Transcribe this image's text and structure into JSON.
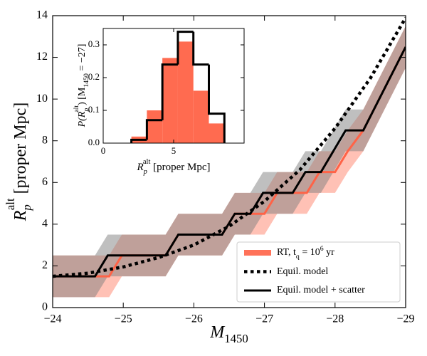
{
  "chart_data": {
    "type": "line",
    "xlabel": [
      "M",
      "1450"
    ],
    "ylabel": [
      "R",
      "p",
      "alt",
      " [proper Mpc]"
    ],
    "xlim": [
      -24,
      -29
    ],
    "ylim": [
      0,
      14
    ],
    "xticks": [
      {
        "value": -24,
        "label": "−24"
      },
      {
        "value": -25,
        "label": "−25"
      },
      {
        "value": -26,
        "label": "−26"
      },
      {
        "value": -27,
        "label": "−27"
      },
      {
        "value": -28,
        "label": "−28"
      },
      {
        "value": -29,
        "label": "−29"
      }
    ],
    "yticks": [
      0,
      2,
      4,
      6,
      8,
      10,
      12,
      14
    ],
    "legend": "lower right",
    "series": [
      {
        "name": [
          "RT, t",
          "q",
          " = 10",
          "6",
          " yr"
        ],
        "color": "#ff6347",
        "band_color": "#ff6347",
        "band": 1,
        "style": "solid",
        "x": [
          -24,
          -24.8,
          -24.98,
          -25.6,
          -25.78,
          -26.4,
          -26.58,
          -27.0,
          -27.18,
          -27.6,
          -27.78,
          -28.0,
          -28.18,
          -28.4,
          -29
        ],
        "values": [
          1.5,
          1.5,
          2.5,
          2.5,
          3.5,
          3.5,
          4.5,
          4.5,
          5.5,
          5.5,
          6.5,
          6.5,
          7.5,
          8.5,
          12.5
        ]
      },
      {
        "name": "Equil. model",
        "color": "#000000",
        "style": "dotted",
        "x": [
          -24,
          -24.5,
          -25,
          -25.5,
          -26,
          -26.5,
          -27,
          -27.5,
          -28,
          -28.5,
          -29
        ],
        "values": [
          1.5,
          1.65,
          1.95,
          2.4,
          3.0,
          3.9,
          5.1,
          6.6,
          8.6,
          11.0,
          13.9
        ]
      },
      {
        "name": "Equil. model + scatter",
        "color": "#000000",
        "band_color": "#808080",
        "band": 1,
        "style": "solid",
        "x": [
          -24,
          -24.6,
          -24.78,
          -25.6,
          -25.78,
          -26.4,
          -26.58,
          -26.8,
          -26.98,
          -27.4,
          -27.58,
          -27.8,
          -28.15,
          -28.4,
          -29
        ],
        "values": [
          1.5,
          1.5,
          2.5,
          2.5,
          3.5,
          3.5,
          4.5,
          4.5,
          5.5,
          5.5,
          6.5,
          6.5,
          8.5,
          8.5,
          12.5
        ]
      }
    ],
    "inset": {
      "type": "histogram",
      "xlabel": [
        "R",
        "p",
        "alt",
        " [proper Mpc]"
      ],
      "ylabel": [
        "P(R",
        "p",
        "alt",
        ") [M",
        "1450",
        " = −27]"
      ],
      "xlim": [
        0,
        10
      ],
      "ylim": [
        0,
        0.35
      ],
      "xticks": [
        0,
        5
      ],
      "yticks": [
        {
          "value": 0,
          "label": "0.0"
        },
        {
          "value": 0.1,
          "label": "0.1"
        },
        {
          "value": 0.2,
          "label": "0.2"
        },
        {
          "value": 0.3,
          "label": "0.3"
        }
      ],
      "bins": [
        2.0,
        3.1,
        4.2,
        5.3,
        6.4,
        7.5,
        8.6
      ],
      "series": [
        {
          "color": "#ff6347",
          "style": "filled",
          "values": [
            0.02,
            0.1,
            0.26,
            0.31,
            0.16,
            0.06
          ]
        },
        {
          "color": "#000000",
          "style": "step",
          "values": [
            0.01,
            0.07,
            0.24,
            0.34,
            0.24,
            0.09
          ]
        }
      ]
    }
  }
}
